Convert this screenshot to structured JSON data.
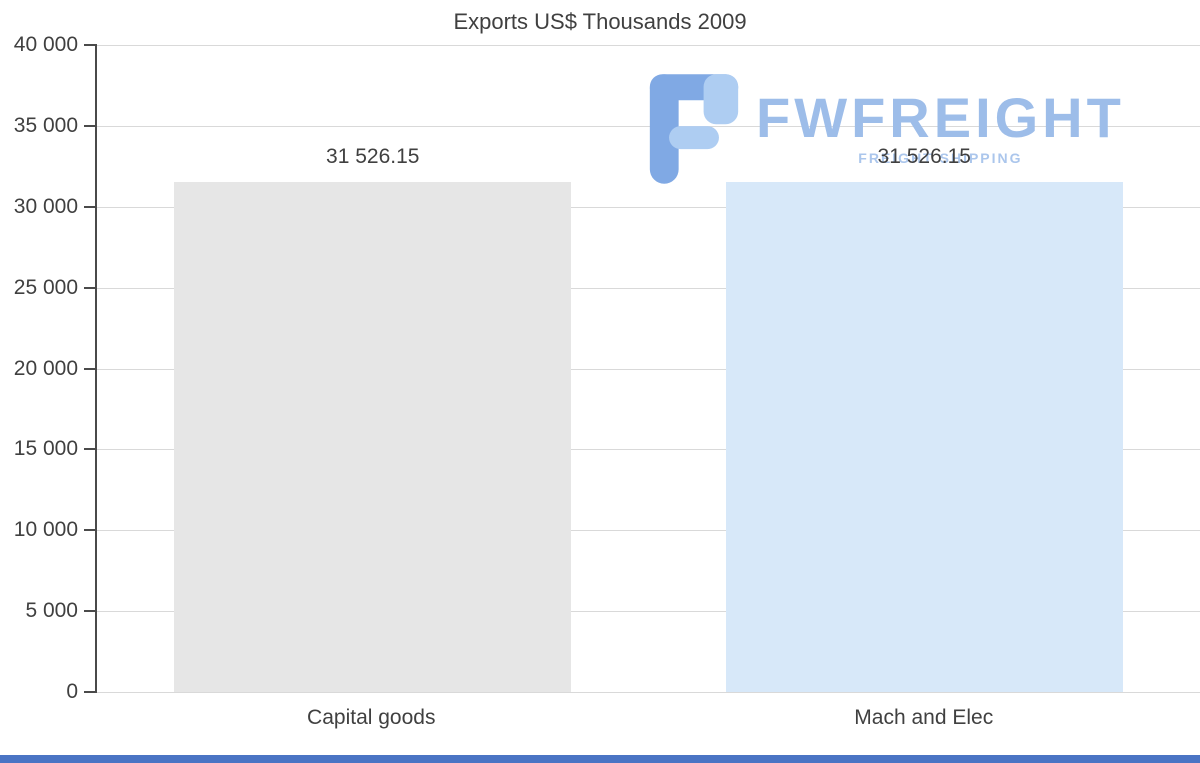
{
  "page": {
    "background": "#ffffff",
    "footer_bar_color": "#4a74c4"
  },
  "watermark": {
    "brand": "FWFREIGHT",
    "tagline": "FREIGHT SHIPPING",
    "brand_color": "#9dbde9",
    "tagline_color": "#abc6ec",
    "icon": "fwfreight-f-logo-icon",
    "icon_color_main": "#80a9e4",
    "icon_color_accent": "#aecdf2"
  },
  "chart_data": {
    "type": "bar",
    "title": "Exports US$ Thousands 2009",
    "categories": [
      "Capital goods",
      "Mach and Elec"
    ],
    "values": [
      31526.15,
      31526.15
    ],
    "value_labels": [
      "31 526.15",
      "31 526.15"
    ],
    "bar_colors": [
      "#e6e6e6",
      "#d7e8f9"
    ],
    "xlabel": "",
    "ylabel": "",
    "ylim": [
      0,
      40000
    ],
    "yticks": [
      {
        "value": 0,
        "label": "0"
      },
      {
        "value": 5000,
        "label": "5 000"
      },
      {
        "value": 10000,
        "label": "10 000"
      },
      {
        "value": 15000,
        "label": "15 000"
      },
      {
        "value": 20000,
        "label": "20 000"
      },
      {
        "value": 25000,
        "label": "25 000"
      },
      {
        "value": 30000,
        "label": "30 000"
      },
      {
        "value": 35000,
        "label": "35 000"
      },
      {
        "value": 40000,
        "label": "40 000"
      }
    ],
    "grid": "horizontal",
    "legend": "none",
    "bar_width_pct": 36,
    "gridline_color": "#d9d9d9",
    "axis_color": "#4a4a4a",
    "text_color": "#404040"
  }
}
